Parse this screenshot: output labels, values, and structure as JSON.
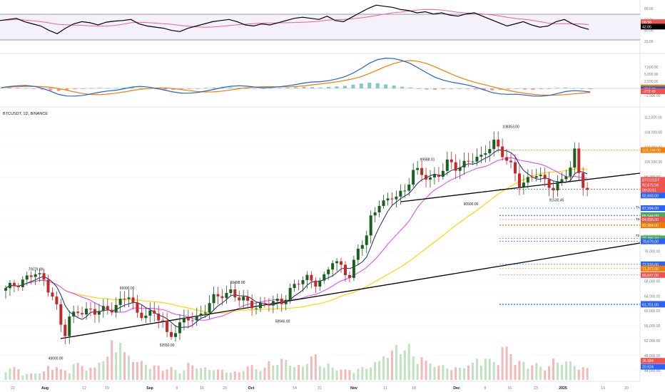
{
  "symbol_label": "BTCUSDT, 1D, BINANCE",
  "colors": {
    "up": "#26a69a",
    "down": "#ef5350",
    "candle_up": "#1b5e20",
    "candle_down": "#c62828",
    "rsi_line": "#000000",
    "rsi_ma": "#f06292",
    "macd_line": "#1e62d6",
    "signal_line": "#f57c00",
    "ma_fast": "#1a237e",
    "ma_mid": "#e040fb",
    "ma_slow": "#ffd600",
    "trendline": "#000000",
    "grid": "#f0f3fa"
  },
  "rsi": {
    "axis_ticks": [
      "80.00",
      "60.00",
      "40.00",
      "20.00"
    ],
    "badges": [
      {
        "label": "58.58",
        "value": 55,
        "color": "#ef5350"
      },
      {
        "label": "42.05",
        "value": 47,
        "color": "#000000"
      }
    ]
  },
  "macd": {
    "axis_ticks": [
      "7,500.00",
      "5,000.00",
      "2,500.00",
      "−2,500.00"
    ],
    "badges": [
      {
        "label": "14.67",
        "value": 300,
        "color": "#f57c00"
      },
      {
        "label": "−257.83",
        "value": -300,
        "color": "#1e62d6"
      },
      {
        "label": "−272.49",
        "value": -1000,
        "color": "#ef5350"
      }
    ]
  },
  "price_axis": {
    "ticks": [
      "112,000.00",
      "108,000.00",
      "104,000.00",
      "100,000.00",
      "96,000.00",
      "88,000.00",
      "84,000.00",
      "80,000.00",
      "76,000.00",
      "68,000.00",
      "64,000.00",
      "60,000.00",
      "56,000.00",
      "52,000.00",
      "48,000.00",
      "44,000.00"
    ],
    "badges": [
      {
        "label": "103,194.00",
        "color": "#f57c00"
      },
      {
        "label": "BTCUSDT",
        "color": "#ef5350"
      },
      {
        "label": "92,675.56",
        "color": "#ef5350"
      },
      {
        "label": "09:00:51",
        "color": "#ef5350"
      },
      {
        "label": "92,693.00",
        "color": "#2962ff"
      },
      {
        "label": "87,594.00",
        "color": "#2962ff"
      },
      {
        "label": "85,680.00",
        "color": "#2962ff"
      },
      {
        "label": "85,544.00",
        "color": "#4caf50"
      },
      {
        "label": "84,555.00",
        "color": "#ef5350"
      },
      {
        "label": "83,108.00",
        "color": "#4caf50"
      },
      {
        "label": "82,984.00",
        "color": "#f57c00"
      },
      {
        "label": "79,486.00",
        "color": "#4caf50"
      },
      {
        "label": "78,676.00",
        "color": "#2962ff"
      },
      {
        "label": "72,516.00",
        "color": "#2962ff"
      },
      {
        "label": "71,372.00",
        "color": "#f57c00"
      },
      {
        "label": "69,647.00",
        "color": "#ef5350"
      },
      {
        "label": "61,870.00",
        "color": "#2962ff"
      },
      {
        "label": "61,701.00",
        "color": "#2962ff"
      },
      {
        "label": "26.684",
        "color": "#ef5350"
      },
      {
        "label": "20.624",
        "color": "#2962ff"
      }
    ],
    "target_labels": [
      "T1",
      "T2",
      "T3"
    ]
  },
  "time_axis": [
    "22",
    "Aug",
    "12",
    "19",
    "Sep",
    "9",
    "16",
    "23",
    "Oct",
    "14",
    "21",
    "Nov",
    "11",
    "18",
    "Dec",
    "9",
    "16",
    "23",
    "2025",
    "13",
    "20"
  ],
  "chart_data": {
    "type": "candlestick",
    "y_unit": "USDT",
    "annotations": [
      {
        "text": "70079.99",
        "price": 70080
      },
      {
        "text": "49000.00",
        "price": 49000
      },
      {
        "text": "65000.00",
        "price": 65000
      },
      {
        "text": "52550.00",
        "price": 52550
      },
      {
        "text": "66498.00",
        "price": 66498
      },
      {
        "text": "58946.00",
        "price": 58946
      },
      {
        "text": "99588.01",
        "price": 99588
      },
      {
        "text": "90500.00",
        "price": 90500
      },
      {
        "text": "108353.00",
        "price": 108353
      },
      {
        "text": "91530.45",
        "price": 91530
      }
    ],
    "close_path": [
      [
        0,
        65500
      ],
      [
        4,
        68500
      ],
      [
        7,
        69800
      ],
      [
        9,
        68200
      ],
      [
        11,
        64500
      ],
      [
        12,
        61000
      ],
      [
        13,
        56000
      ],
      [
        14,
        53500
      ],
      [
        15,
        57800
      ],
      [
        17,
        60500
      ],
      [
        19,
        60000
      ],
      [
        21,
        59200
      ],
      [
        23,
        60600
      ],
      [
        25,
        61000
      ],
      [
        27,
        62000
      ],
      [
        29,
        64000
      ],
      [
        31,
        59500
      ],
      [
        33,
        59200
      ],
      [
        35,
        58500
      ],
      [
        37,
        57500
      ],
      [
        38,
        54000
      ],
      [
        39,
        53800
      ],
      [
        41,
        56000
      ],
      [
        43,
        57800
      ],
      [
        45,
        58500
      ],
      [
        47,
        60500
      ],
      [
        49,
        63000
      ],
      [
        51,
        64500
      ],
      [
        53,
        65500
      ],
      [
        55,
        63000
      ],
      [
        57,
        62000
      ],
      [
        59,
        61500
      ],
      [
        61,
        62000
      ],
      [
        63,
        61800
      ],
      [
        65,
        62500
      ],
      [
        67,
        66000
      ],
      [
        69,
        67500
      ],
      [
        71,
        68500
      ],
      [
        73,
        68000
      ],
      [
        75,
        69000
      ],
      [
        77,
        73000
      ],
      [
        79,
        72000
      ],
      [
        81,
        69800
      ],
      [
        83,
        76000
      ],
      [
        85,
        80000
      ],
      [
        86,
        85000
      ],
      [
        88,
        89500
      ],
      [
        90,
        89000
      ],
      [
        92,
        91000
      ],
      [
        94,
        92500
      ],
      [
        96,
        98000
      ],
      [
        98,
        96000
      ],
      [
        100,
        95800
      ],
      [
        102,
        97000
      ],
      [
        104,
        99500
      ],
      [
        106,
        98200
      ],
      [
        108,
        100000
      ],
      [
        110,
        101000
      ],
      [
        112,
        100500
      ],
      [
        114,
        104500
      ],
      [
        115,
        106000
      ],
      [
        117,
        102000
      ],
      [
        119,
        98500
      ],
      [
        121,
        94500
      ],
      [
        123,
        95500
      ],
      [
        125,
        96500
      ],
      [
        127,
        94500
      ],
      [
        129,
        93500
      ],
      [
        131,
        95000
      ],
      [
        133,
        98000
      ],
      [
        134,
        102500
      ],
      [
        135,
        97500
      ],
      [
        136,
        94500
      ],
      [
        137,
        92600
      ]
    ],
    "volume_levels": [
      0.3,
      0.15,
      0.2,
      0.35,
      0.25,
      0.4,
      0.3,
      0.55,
      1.0,
      0.65,
      0.45,
      0.35,
      0.3,
      0.25,
      0.4,
      0.3,
      0.25,
      0.2,
      0.35,
      0.3,
      0.45,
      0.5,
      0.35,
      0.6,
      0.4,
      0.3,
      0.25,
      0.3,
      0.45,
      0.7,
      0.85,
      0.6,
      0.45,
      0.35,
      0.3,
      0.4,
      0.55,
      0.5,
      0.8,
      0.45,
      0.4,
      0.35,
      0.5,
      0.45,
      0.3
    ],
    "rsi_values": [
      58,
      60,
      62,
      56,
      52,
      48,
      40,
      34,
      44,
      52,
      56,
      54,
      50,
      55,
      57,
      58,
      60,
      52,
      48,
      46,
      44,
      40,
      38,
      44,
      48,
      52,
      56,
      58,
      60,
      56,
      50,
      48,
      52,
      50,
      54,
      58,
      62,
      64,
      62,
      60,
      66,
      58,
      56,
      64,
      72,
      80,
      86,
      84,
      82,
      78,
      76,
      72,
      74,
      70,
      72,
      68,
      66,
      70,
      72,
      66,
      60,
      54,
      48,
      52,
      56,
      50,
      46,
      48,
      56,
      60,
      52,
      46,
      42
    ],
    "macd_hist": [
      200,
      300,
      250,
      150,
      -100,
      -400,
      -700,
      -900,
      -600,
      -300,
      -100,
      100,
      200,
      150,
      100,
      300,
      400,
      200,
      -100,
      -300,
      -400,
      -500,
      -400,
      -200,
      0,
      200,
      300,
      400,
      350,
      200,
      0,
      -150,
      -100,
      100,
      200,
      300,
      400,
      500,
      450,
      300,
      500,
      700,
      900,
      1300,
      1700,
      2000,
      1800,
      1400,
      1000,
      600,
      300,
      -200,
      -400,
      -500,
      -300,
      -200,
      -100,
      -200,
      -400,
      -600,
      -700,
      -500,
      -300,
      -200,
      -400,
      -500,
      -300,
      -100,
      200,
      300,
      100,
      -200,
      -300
    ]
  }
}
